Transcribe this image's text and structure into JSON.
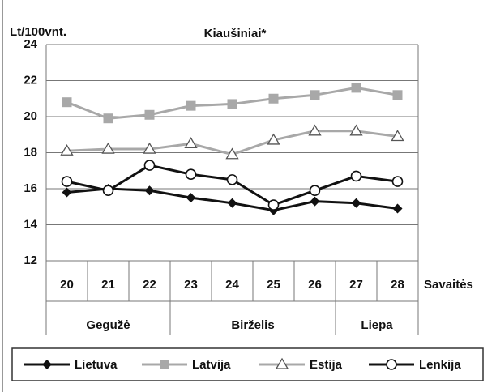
{
  "chart_data": {
    "type": "line",
    "title": "Kiaušiniai*",
    "ylabel": "Lt/100vnt.",
    "xlabel": "Savaitės",
    "categories": [
      "20",
      "21",
      "22",
      "23",
      "24",
      "25",
      "26",
      "27",
      "28"
    ],
    "months": [
      "Gegužė",
      "Birželis",
      "Liepa"
    ],
    "series": [
      {
        "name": "Lietuva",
        "color": "#111111",
        "marker": "diamond",
        "values": [
          15.8,
          16.0,
          15.9,
          15.5,
          15.2,
          14.8,
          15.3,
          15.2,
          14.9
        ]
      },
      {
        "name": "Latvija",
        "color": "#a8a8a8",
        "marker": "square",
        "values": [
          20.8,
          19.9,
          20.1,
          20.6,
          20.7,
          21.0,
          21.2,
          21.6,
          21.2
        ]
      },
      {
        "name": "Estija",
        "color": "#a8a8a8",
        "marker": "triangle",
        "values": [
          18.1,
          18.2,
          18.2,
          18.5,
          17.9,
          18.7,
          19.2,
          19.2,
          18.9
        ]
      },
      {
        "name": "Lenkija",
        "color": "#111111",
        "marker": "circle",
        "values": [
          16.4,
          15.9,
          17.3,
          16.8,
          16.5,
          15.1,
          15.9,
          16.7,
          16.4
        ]
      }
    ],
    "ylim": [
      12,
      24
    ],
    "yticks": [
      12,
      14,
      16,
      18,
      20,
      22,
      24
    ],
    "grid": true
  }
}
